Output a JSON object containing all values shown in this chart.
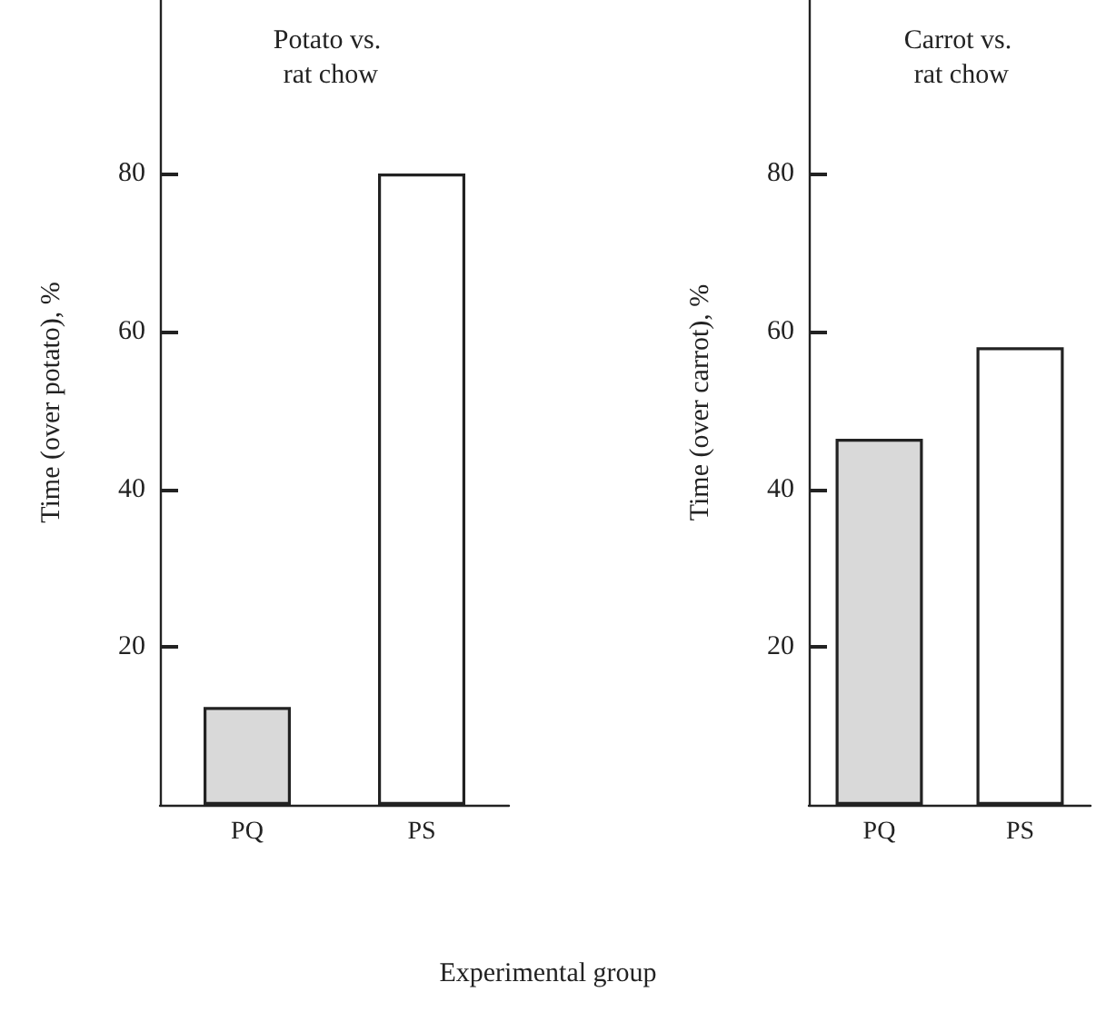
{
  "chart_data": [
    {
      "type": "bar",
      "title": "Potato vs. rat chow",
      "ylabel": "Time (over potato), %",
      "xlabel": "Experimental group",
      "categories": [
        "PQ",
        "PS"
      ],
      "values": [
        12.4,
        80
      ],
      "colors": [
        "#d9d9d9",
        "#ffffff"
      ],
      "ylim": [
        0,
        102
      ],
      "yticks": [
        20,
        40,
        60,
        80
      ]
    },
    {
      "type": "bar",
      "title": "Carrot vs. rat chow",
      "ylabel": "Time (over carrot), %",
      "categories": [
        "PQ",
        "PS"
      ],
      "values": [
        46.4,
        58
      ],
      "colors": [
        "#d9d9d9",
        "#ffffff"
      ],
      "ylim": [
        0,
        102
      ],
      "yticks": [
        20,
        40,
        60,
        80
      ]
    }
  ]
}
